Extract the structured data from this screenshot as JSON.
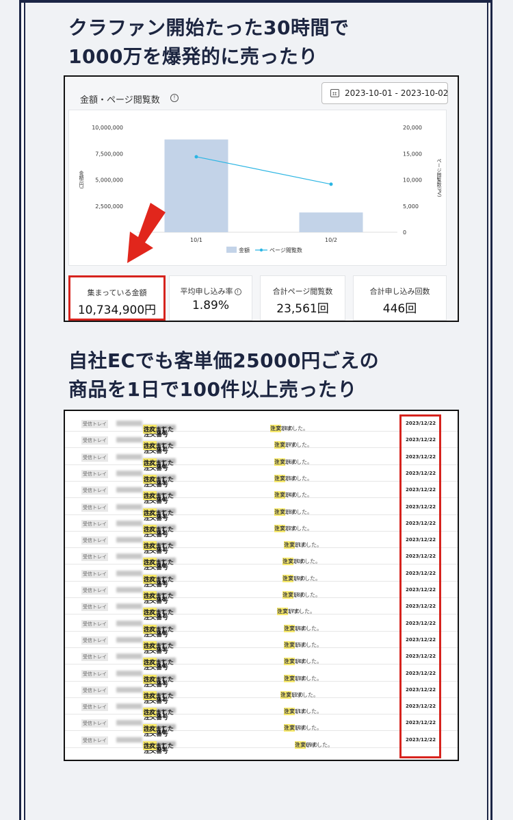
{
  "heading1": {
    "line1": "クラファン開始たった30時間で",
    "line2": "1000万を爆発的に売ったり"
  },
  "heading2": {
    "line1": "自社ECでも客単価25000円ごえの",
    "line2": "商品を1日で100件以上売ったり"
  },
  "dashboard": {
    "title": "金額・ページ閲覧数",
    "info_icon": "info-icon",
    "date_range": "2023-10-01 - 2023-10-02",
    "stats": [
      {
        "label": "集まっている金額",
        "value": "10,734,900円"
      },
      {
        "label": "平均申し込み率",
        "value": "1.89%"
      },
      {
        "label": "合計ページ閲覧数",
        "value": "23,561回"
      },
      {
        "label": "合計申し込み回数",
        "value": "446回"
      }
    ]
  },
  "chart_data": {
    "type": "bar",
    "categories": [
      "10/1",
      "10/2"
    ],
    "series": [
      {
        "name": "金額",
        "type": "bar",
        "axis": "left",
        "values": [
          8850000,
          1884900
        ],
        "color": "#c3d3e8"
      },
      {
        "name": "ページ閲覧数",
        "type": "line",
        "axis": "right",
        "values": [
          14400,
          9161
        ],
        "color": "#2bb5e3"
      }
    ],
    "y_left": {
      "label": "金額(円)",
      "ticks": [
        "10,000,000",
        "7,500,000",
        "5,000,000",
        "2,500,000"
      ],
      "ylim": [
        0,
        10000000
      ]
    },
    "y_right": {
      "label": "ページ閲覧数(PV)",
      "ticks": [
        "20,000",
        "15,000",
        "10,000",
        "5,000",
        "0"
      ],
      "ylim": [
        0,
        20000
      ]
    },
    "legend_position": "bottom"
  },
  "orders": {
    "inbox_label": "受信トレイ",
    "subject_prefix": "注文番号",
    "subject_by": "によって",
    "subject_kw": "注文",
    "subject_suffix": "されました",
    "snippet_kw": "注文",
    "snippet_mid": "を行いました。",
    "snippet_end": "を表示す",
    "rows": [
      {
        "num": "#1028",
        "snippet_num": "- 1028の",
        "date": "2023/12/22"
      },
      {
        "num": "#1027",
        "snippet_num": "- 1027の",
        "date": "2023/12/22"
      },
      {
        "num": "#1026",
        "snippet_num": "- 1026の",
        "date": "2023/12/22"
      },
      {
        "num": "#1025",
        "snippet_num": "- 1025の",
        "date": "2023/12/22"
      },
      {
        "num": "#1024",
        "snippet_num": "- 1024の",
        "date": "2023/12/22"
      },
      {
        "num": "#1023",
        "snippet_num": "- 1023の",
        "date": "2023/12/22"
      },
      {
        "num": "#1022",
        "snippet_num": "- 1022の",
        "date": "2023/12/22"
      },
      {
        "num": "#1021",
        "snippet_num": "- 1021の",
        "date": "2023/12/22"
      },
      {
        "num": "#1020",
        "snippet_num": "- 1020の",
        "date": "2023/12/22"
      },
      {
        "num": "#1019",
        "snippet_num": "- 1019の",
        "date": "2023/12/22"
      },
      {
        "num": "#1018",
        "snippet_num": "- 1018の",
        "date": "2023/12/22"
      },
      {
        "num": "#1017",
        "snippet_num": "- 1017の",
        "date": "2023/12/22"
      },
      {
        "num": "#1016",
        "snippet_num": "- 1016の",
        "date": "2023/12/22"
      },
      {
        "num": "#1015",
        "snippet_num": "- 1015の",
        "date": "2023/12/22"
      },
      {
        "num": "#1014",
        "snippet_num": "- 1014の",
        "date": "2023/12/22"
      },
      {
        "num": "#1013",
        "snippet_num": "- 1013の",
        "date": "2023/12/22"
      },
      {
        "num": "#1012",
        "snippet_num": "- 1012の",
        "date": "2023/12/22"
      },
      {
        "num": "#1011",
        "snippet_num": "- 1011の",
        "date": "2023/12/22"
      },
      {
        "num": "#1010",
        "snippet_num": "- 1010の",
        "date": "2023/12/22"
      },
      {
        "num": "#1009",
        "snippet_num": "- 1009の",
        "date": "2023/12/22"
      }
    ]
  }
}
